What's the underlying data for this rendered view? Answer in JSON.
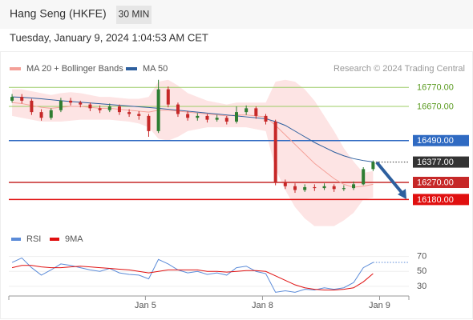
{
  "chart_data": {
    "type": "candlestick",
    "title": "Hang Seng (HKFE)",
    "interval": "30 MIN",
    "subtitle": "Tuesday, January 9, 2024 1:04:53 AM CET",
    "copyright": "Research © 2024 Trading Central",
    "x": [
      0,
      3,
      6,
      9,
      12,
      15,
      18,
      21,
      24,
      27,
      30,
      33,
      36,
      39,
      42,
      45,
      48,
      51,
      54,
      57,
      60,
      63,
      66,
      69,
      72,
      75,
      78,
      81,
      84,
      87,
      90,
      93,
      96,
      99,
      102,
      105,
      108,
      111
    ],
    "open": [
      16700,
      16720,
      16700,
      16640,
      16610,
      16650,
      16700,
      16690,
      16680,
      16660,
      16650,
      16670,
      16640,
      16630,
      16620,
      16540,
      16760,
      16680,
      16630,
      16610,
      16620,
      16600,
      16610,
      16590,
      16640,
      16660,
      16620,
      16590,
      16270,
      16250,
      16230,
      16245,
      16240,
      16250,
      16235,
      16240,
      16260,
      16340
    ],
    "high": [
      16735,
      16735,
      16710,
      16655,
      16660,
      16715,
      16715,
      16700,
      16690,
      16675,
      16685,
      16680,
      16655,
      16645,
      16630,
      16810,
      16775,
      16690,
      16645,
      16635,
      16630,
      16625,
      16620,
      16670,
      16675,
      16670,
      16630,
      16600,
      16285,
      16265,
      16260,
      16260,
      16265,
      16260,
      16255,
      16275,
      16350,
      16385
    ],
    "low": [
      16690,
      16685,
      16625,
      16595,
      16600,
      16640,
      16675,
      16665,
      16645,
      16635,
      16640,
      16625,
      16615,
      16600,
      16510,
      16530,
      16665,
      16615,
      16595,
      16595,
      16585,
      16590,
      16575,
      16580,
      16625,
      16605,
      16575,
      16255,
      16235,
      16215,
      16220,
      16225,
      16230,
      16220,
      16225,
      16230,
      16255,
      16330
    ],
    "close": [
      16720,
      16700,
      16640,
      16610,
      16650,
      16700,
      16690,
      16680,
      16660,
      16650,
      16670,
      16640,
      16630,
      16620,
      16540,
      16760,
      16680,
      16630,
      16610,
      16620,
      16600,
      16610,
      16590,
      16640,
      16660,
      16620,
      16590,
      16270,
      16250,
      16230,
      16245,
      16240,
      16250,
      16235,
      16240,
      16260,
      16340,
      16377
    ],
    "up_color": "#2e7d32",
    "down_color": "#c62828",
    "xlim": [
      -1,
      122
    ],
    "xticks": [
      {
        "value": 41,
        "label": "Jan 5"
      },
      {
        "value": 77,
        "label": "Jan 8"
      },
      {
        "value": 113,
        "label": "Jan 9"
      }
    ],
    "ylim": [
      16030,
      16830
    ],
    "overlays": [
      {
        "name": "MA 20 + Bollinger Bands",
        "color": "#f4a098",
        "band_color": "#fde4e4",
        "values": [
          16690,
          16685,
          16675,
          16665,
          16660,
          16665,
          16670,
          16670,
          16665,
          16660,
          16660,
          16655,
          16650,
          16645,
          16640,
          16650,
          16650,
          16645,
          16640,
          16635,
          16630,
          16625,
          16620,
          16625,
          16625,
          16620,
          16615,
          16570,
          16520,
          16470,
          16420,
          16370,
          16330,
          16290,
          16260,
          16245,
          16250,
          16260
        ],
        "upper": [
          16760,
          16760,
          16750,
          16740,
          16730,
          16740,
          16745,
          16740,
          16730,
          16720,
          16720,
          16715,
          16710,
          16710,
          16720,
          16800,
          16810,
          16780,
          16740,
          16720,
          16700,
          16690,
          16680,
          16690,
          16690,
          16690,
          16690,
          16800,
          16810,
          16800,
          16760,
          16700,
          16620,
          16540,
          16450,
          16380,
          16320,
          16330
        ],
        "lower": [
          16620,
          16610,
          16600,
          16590,
          16590,
          16590,
          16595,
          16600,
          16600,
          16600,
          16600,
          16595,
          16590,
          16580,
          16560,
          16500,
          16490,
          16510,
          16540,
          16550,
          16560,
          16560,
          16560,
          16560,
          16560,
          16550,
          16540,
          16340,
          16230,
          16140,
          16080,
          16040,
          16040,
          16040,
          16070,
          16110,
          16180,
          16190
        ]
      },
      {
        "name": "MA 50",
        "color": "#2d5f9e",
        "values": [
          16720,
          16718,
          16714,
          16710,
          16705,
          16700,
          16696,
          16692,
          16688,
          16684,
          16680,
          16676,
          16672,
          16668,
          16664,
          16660,
          16655,
          16650,
          16645,
          16640,
          16635,
          16630,
          16625,
          16620,
          16615,
          16610,
          16605,
          16590,
          16570,
          16540,
          16510,
          16480,
          16455,
          16430,
          16410,
          16395,
          16385,
          16378
        ]
      }
    ],
    "levels": [
      {
        "value": 16770,
        "label": "16770.00",
        "color": "#9ccc65",
        "boxed": false
      },
      {
        "value": 16670,
        "label": "16670.00",
        "color": "#9ccc65",
        "boxed": false
      },
      {
        "value": 16490,
        "label": "16490.00",
        "color": "#2f6ac2",
        "boxed": true
      },
      {
        "value": 16377,
        "label": "16377.00",
        "color": "#333333",
        "boxed": true,
        "dotted": true
      },
      {
        "value": 16270,
        "label": "16270.00",
        "color": "#c62828",
        "boxed": true
      },
      {
        "value": 16180,
        "label": "16180.00",
        "color": "#e01010",
        "boxed": true
      }
    ],
    "rsi": {
      "ylim": [
        17,
        76
      ],
      "yticks": [
        30,
        50,
        70
      ],
      "series": [
        {
          "name": "RSI",
          "color": "#5b8bd8",
          "values": [
            62,
            68,
            55,
            45,
            52,
            60,
            58,
            55,
            52,
            50,
            54,
            48,
            46,
            45,
            40,
            66,
            60,
            52,
            48,
            50,
            46,
            48,
            45,
            55,
            57,
            50,
            47,
            22,
            24,
            22,
            26,
            25,
            28,
            26,
            28,
            35,
            55,
            62
          ]
        },
        {
          "name": "9MA",
          "color": "#e01010",
          "values": [
            55,
            58,
            58,
            56,
            55,
            55,
            56,
            57,
            56,
            55,
            54,
            53,
            52,
            50,
            48,
            50,
            52,
            52,
            52,
            52,
            50,
            50,
            49,
            50,
            51,
            51,
            50,
            44,
            38,
            32,
            28,
            26,
            25,
            25,
            26,
            28,
            36,
            47
          ]
        }
      ]
    }
  }
}
